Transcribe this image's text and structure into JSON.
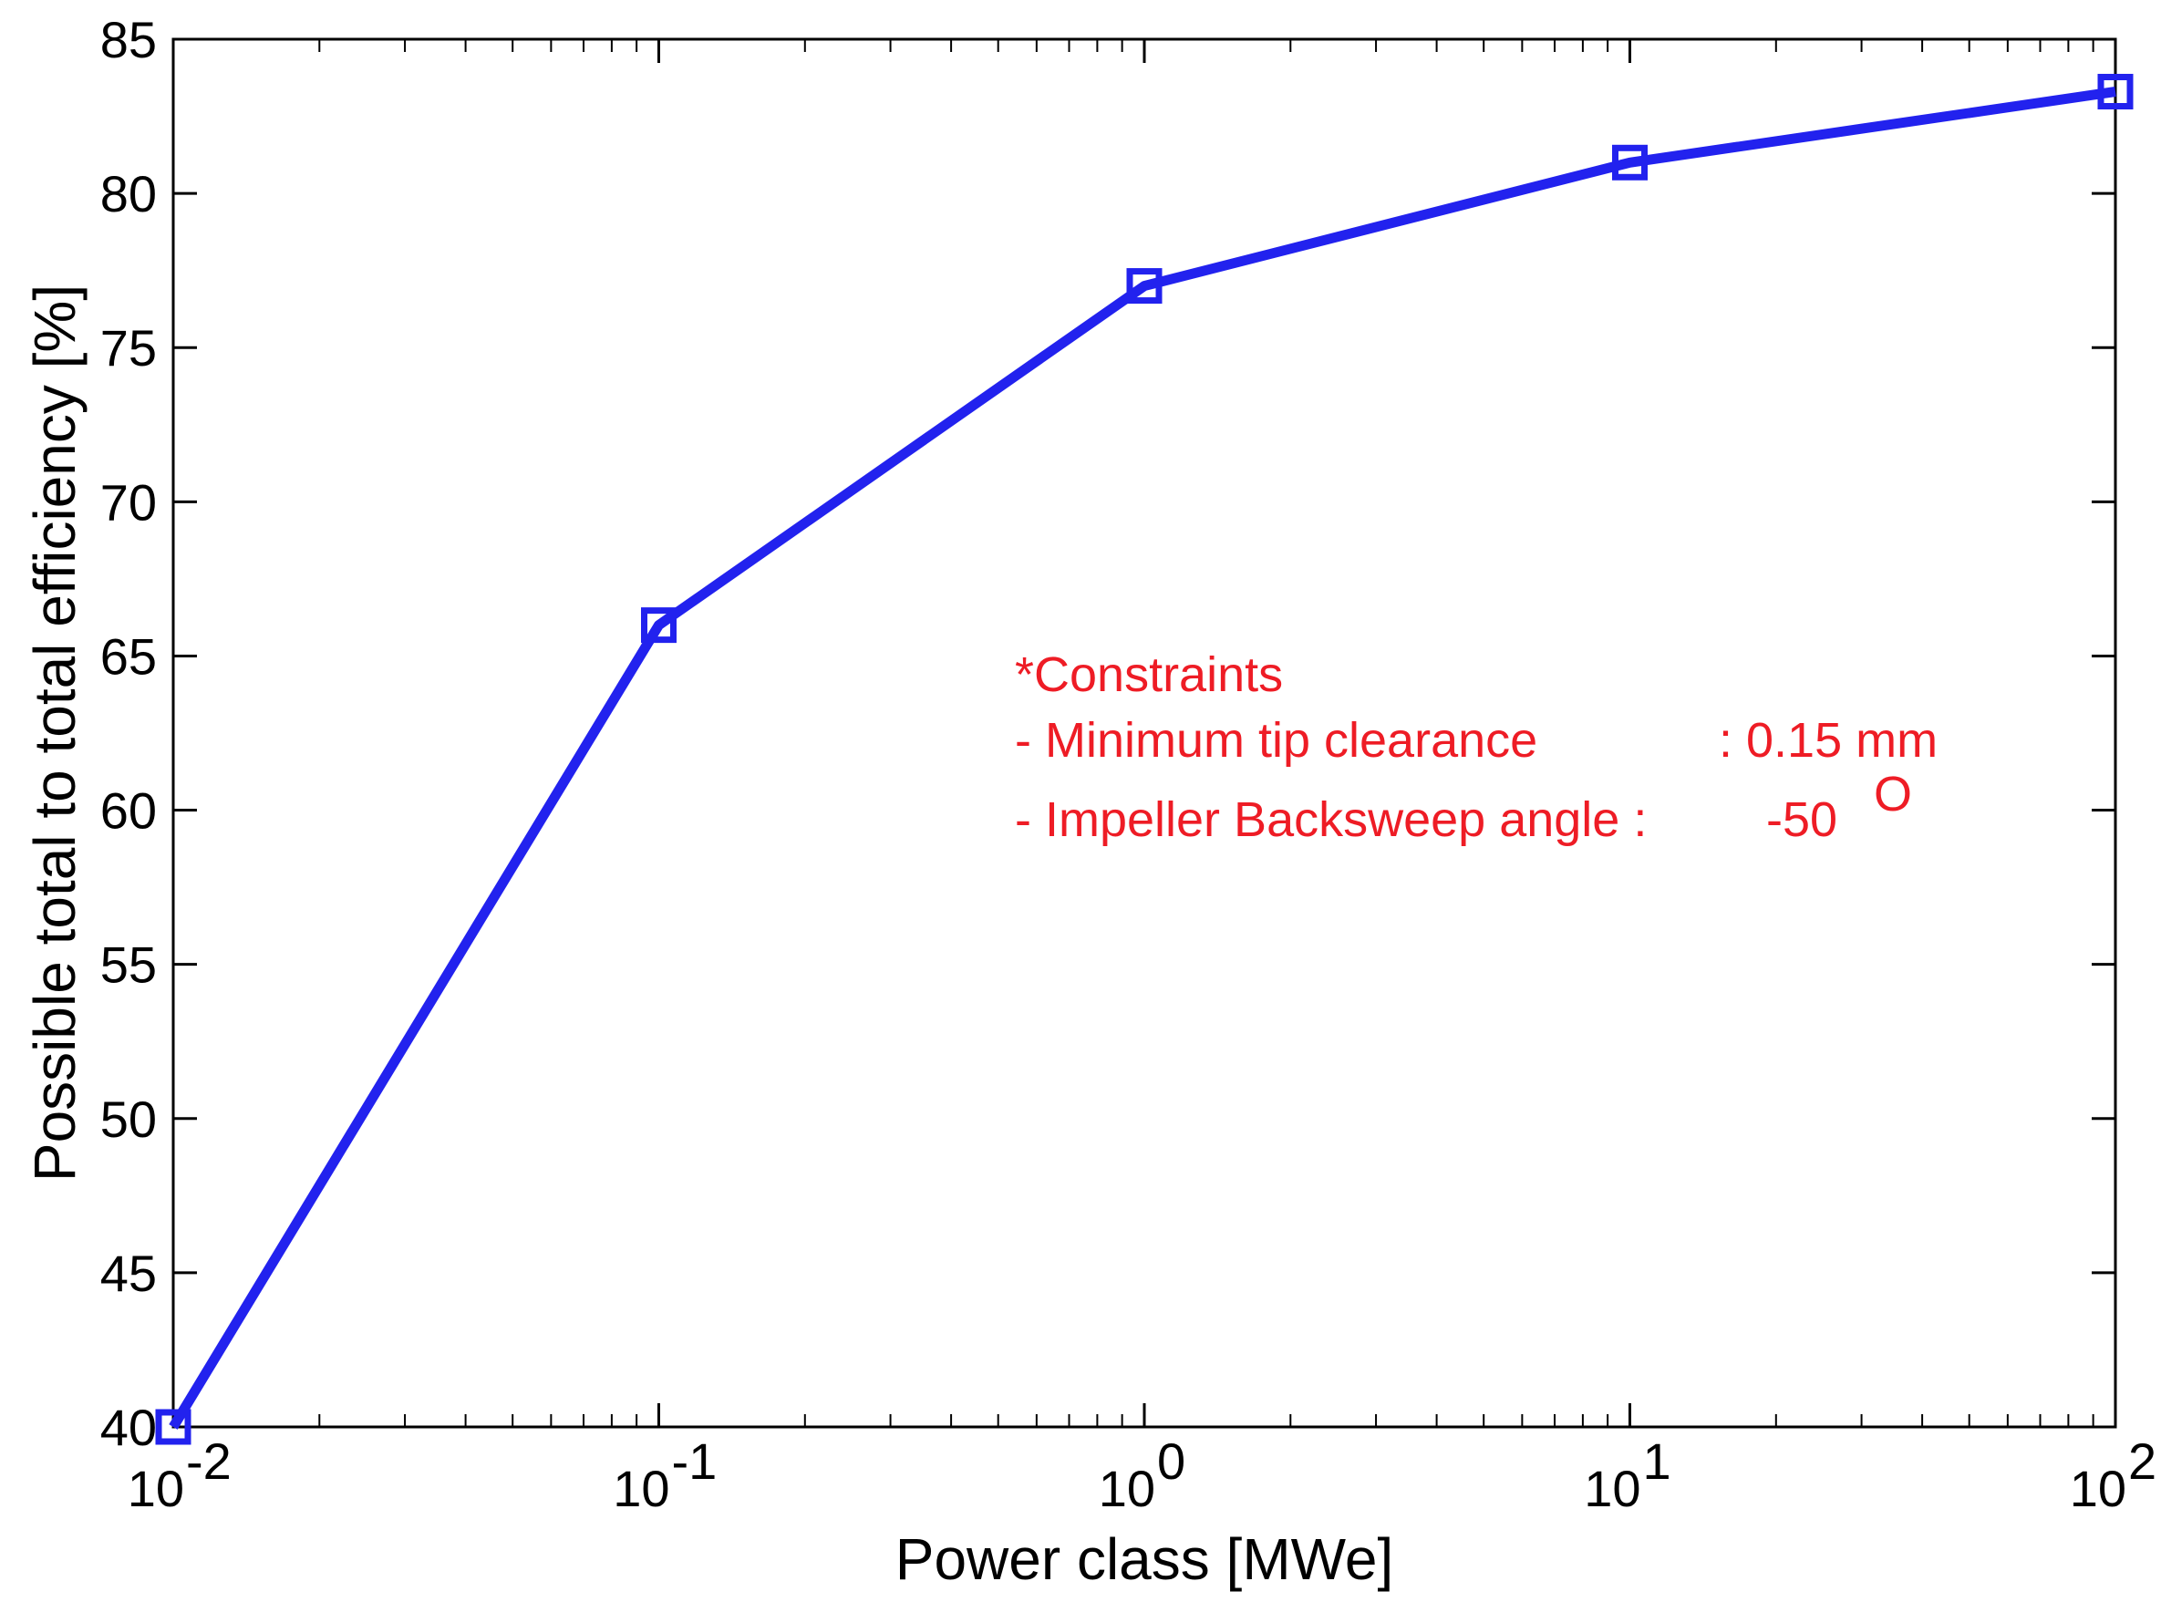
{
  "chart_data": {
    "type": "line",
    "xscale": "log",
    "xlabel": "Power class [MWe]",
    "ylabel": "Possible total to total efficiency [%]",
    "xlim": [
      0.01,
      100
    ],
    "ylim": [
      40,
      85
    ],
    "grid": false,
    "x_ticks": [
      {
        "base": "10",
        "exp": "-2",
        "value": 0.01
      },
      {
        "base": "10",
        "exp": "-1",
        "value": 0.1
      },
      {
        "base": "10",
        "exp": "0",
        "value": 1
      },
      {
        "base": "10",
        "exp": "1",
        "value": 10
      },
      {
        "base": "10",
        "exp": "2",
        "value": 100
      }
    ],
    "y_ticks": [
      "40",
      "45",
      "50",
      "55",
      "60",
      "65",
      "70",
      "75",
      "80",
      "85"
    ],
    "series": [
      {
        "color": "#2222ee",
        "marker": "square",
        "x": [
          0.01,
          0.1,
          1,
          10,
          100
        ],
        "y": [
          40,
          66,
          77,
          81,
          83.3
        ]
      }
    ],
    "annotation": {
      "color": "#ee1c25",
      "title": "*Constraints",
      "line1_label": "- Minimum tip clearance",
      "line1_value": ": 0.15 mm",
      "line2_label": "- Impeller Backsweep angle :",
      "line2_value": "-50",
      "line2_degree": "O"
    }
  }
}
